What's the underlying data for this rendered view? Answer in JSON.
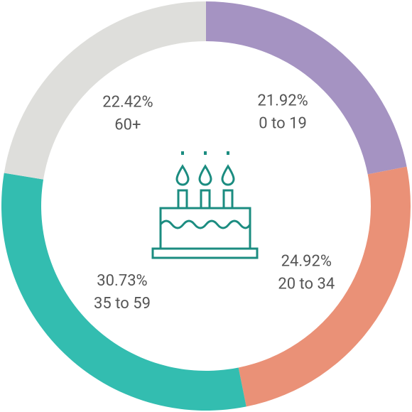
{
  "chart_data": {
    "type": "pie",
    "donut": true,
    "categories": [
      "0 to 19",
      "20 to 34",
      "35 to 59",
      "60+"
    ],
    "values": [
      21.92,
      24.92,
      30.73,
      22.42
    ],
    "value_labels": [
      "21.92%",
      "24.92%",
      "30.73%",
      "22.42%"
    ],
    "colors": [
      "#a593c2",
      "#ea9177",
      "#33bdb0",
      "#dededb"
    ]
  }
}
